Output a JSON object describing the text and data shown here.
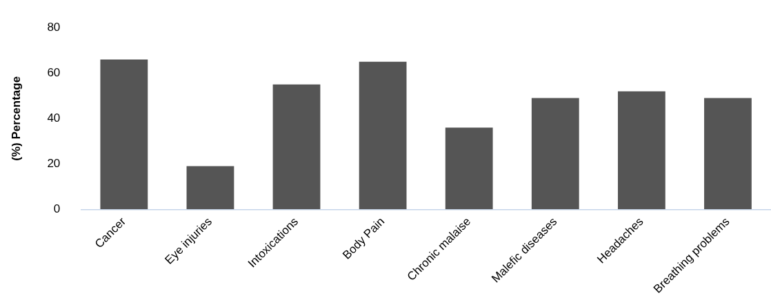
{
  "chart_data": {
    "type": "bar",
    "ylabel": "(%) Percentage",
    "categories": [
      "Cancer",
      "Eye injuries",
      "Intoxications",
      "Body Pain",
      "Chronic malaise",
      "Malefic diseases",
      "Headaches",
      "Breathing problems"
    ],
    "values": [
      66,
      19,
      55,
      65,
      36,
      49,
      52,
      49
    ],
    "color": "#555555",
    "ylim": [
      0,
      80
    ],
    "yticks": [
      0,
      20,
      40,
      60,
      80
    ],
    "grid": false,
    "legend": false
  }
}
